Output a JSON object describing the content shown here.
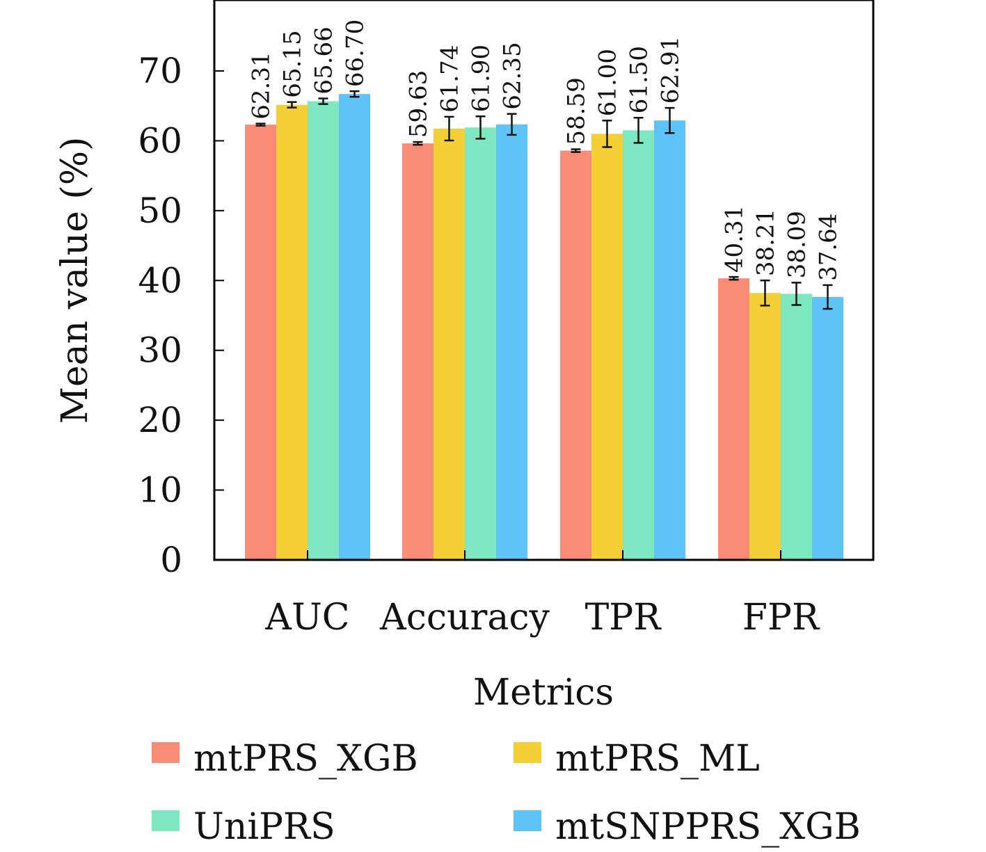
{
  "chart_data": {
    "type": "bar",
    "title": "",
    "xlabel": "Metrics",
    "ylabel": "Mean value (%)",
    "ylim": [
      0,
      70
    ],
    "yticks": [
      0,
      10,
      20,
      30,
      40,
      50,
      60,
      70
    ],
    "categories": [
      "AUC",
      "Accuracy",
      "TPR",
      "FPR"
    ],
    "series": [
      {
        "name": "mtPRS_XGB",
        "color": "#fa8b74",
        "values": [
          62.31,
          59.63,
          58.59,
          40.31
        ],
        "labels": [
          "62.31",
          "59.63",
          "58.59",
          "40.31"
        ],
        "errors": [
          0.15,
          0.2,
          0.2,
          0.2
        ]
      },
      {
        "name": "mtPRS_ML",
        "color": "#f5cf36",
        "values": [
          65.15,
          61.74,
          61.0,
          38.21
        ],
        "labels": [
          "65.15",
          "61.74",
          "61.00",
          "38.21"
        ],
        "errors": [
          0.4,
          1.7,
          1.9,
          1.8
        ]
      },
      {
        "name": "UniPRS",
        "color": "#7de8c0",
        "values": [
          65.66,
          61.9,
          61.5,
          38.09
        ],
        "labels": [
          "65.66",
          "61.90",
          "61.50",
          "38.09"
        ],
        "errors": [
          0.4,
          1.6,
          1.8,
          1.6
        ]
      },
      {
        "name": "mtSNPPRS_XGB",
        "color": "#5ec4f7",
        "values": [
          66.7,
          62.35,
          62.91,
          37.64
        ],
        "labels": [
          "66.70",
          "62.35",
          "62.91",
          "37.64"
        ],
        "errors": [
          0.4,
          1.5,
          1.8,
          1.7
        ]
      }
    ],
    "grid": false,
    "legend": "bottom"
  }
}
